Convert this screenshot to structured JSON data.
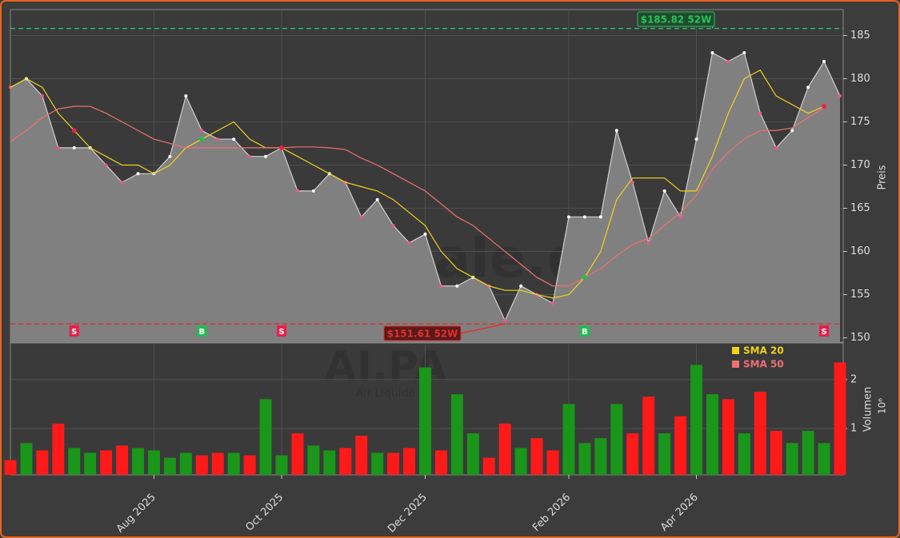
{
  "chart_data": {
    "type": "candle-area",
    "ticker": "AI.PA",
    "company": "Air Liquide",
    "watermark": "forexsignale.de",
    "categories": [
      null,
      null,
      null,
      null,
      null,
      null,
      null,
      null,
      null,
      "Aug 2025",
      null,
      null,
      null,
      null,
      null,
      null,
      null,
      "Oct 2025",
      null,
      null,
      null,
      null,
      null,
      null,
      null,
      null,
      "Dec 2025",
      null,
      null,
      null,
      null,
      null,
      null,
      null,
      null,
      "Feb 2026",
      null,
      null,
      null,
      null,
      null,
      null,
      null,
      "Apr 2026",
      null,
      null,
      null,
      null,
      null,
      null,
      null,
      null,
      null
    ],
    "close": [
      179,
      180,
      178,
      172,
      172,
      172,
      170,
      168,
      169,
      169,
      171,
      178,
      174,
      173,
      173,
      171,
      171,
      172,
      167,
      167,
      169,
      168,
      164,
      166,
      163,
      161,
      162,
      156,
      156,
      157,
      156,
      152,
      156,
      155,
      154,
      164,
      164,
      164,
      174,
      168,
      161,
      167,
      164,
      173,
      183,
      182,
      183,
      176,
      172,
      174,
      179,
      182,
      178
    ],
    "series": [
      {
        "name": "SMA 20",
        "color": "#f2d21b",
        "values": [
          179,
          180,
          179,
          176,
          174,
          172,
          171,
          170,
          170,
          169,
          170,
          172,
          173,
          174,
          175,
          173,
          172,
          172,
          171,
          170,
          169,
          168,
          167.5,
          167,
          166,
          164.5,
          163,
          160,
          158,
          157,
          156,
          155.5,
          155.5,
          155,
          154.6,
          155,
          157,
          160,
          166,
          168.5,
          168.5,
          168.5,
          167,
          167,
          171,
          176,
          180,
          181,
          178,
          177,
          176,
          176.8,
          null
        ]
      },
      {
        "name": "SMA 50",
        "color": "#f07070",
        "values": [
          172.7,
          174,
          175.5,
          176.5,
          176.8,
          176.8,
          176,
          175,
          174,
          173,
          172.5,
          172,
          172,
          172,
          172,
          172,
          172,
          172,
          172.1,
          172.1,
          172,
          171.8,
          170.8,
          170,
          169,
          168,
          167,
          165.5,
          164,
          163,
          161.5,
          160,
          158.5,
          157,
          156,
          156,
          157,
          158,
          159.5,
          160.8,
          161.5,
          163,
          164.5,
          166.5,
          169.5,
          171.5,
          173,
          174,
          174,
          174.3,
          175.5,
          176.6,
          null
        ]
      }
    ],
    "volume": [
      0.35,
      0.7,
      0.55,
      1.1,
      0.6,
      0.5,
      0.55,
      0.65,
      0.6,
      0.55,
      0.4,
      0.5,
      0.45,
      0.5,
      0.5,
      0.45,
      1.6,
      0.45,
      0.9,
      0.65,
      0.55,
      0.6,
      0.85,
      0.5,
      0.5,
      0.6,
      2.25,
      0.55,
      1.7,
      0.9,
      0.4,
      1.1,
      0.6,
      0.8,
      0.55,
      1.5,
      0.7,
      0.8,
      1.5,
      0.9,
      1.65,
      0.9,
      1.25,
      2.3,
      1.7,
      1.6,
      0.9,
      1.75,
      0.95,
      0.7,
      0.95,
      0.7,
      2.35
    ],
    "up_color": "#1a961a",
    "down_color": "#ff1a1a",
    "ylim": [
      149.5,
      188
    ],
    "yticks": [
      150,
      155,
      160,
      165,
      170,
      175,
      180,
      185
    ],
    "ylabel": "Preis",
    "y2lim": [
      0.05,
      2.75
    ],
    "y2ticks": [
      1,
      2
    ],
    "y2label": "Volumen",
    "y2unit": "10⁶",
    "high_52w": {
      "value": 185.82,
      "label": "$185.82 52W",
      "color": "#2fbf5f"
    },
    "low_52w": {
      "value": 151.61,
      "label": "$151.61 52W",
      "color": "#e03030"
    },
    "signals": [
      {
        "label": "S",
        "x": 4
      },
      {
        "label": "B",
        "x": 12
      },
      {
        "label": "S",
        "x": 17
      },
      {
        "label": "B",
        "x": 36
      },
      {
        "label": "S",
        "x": 51
      }
    ],
    "grid": true
  }
}
